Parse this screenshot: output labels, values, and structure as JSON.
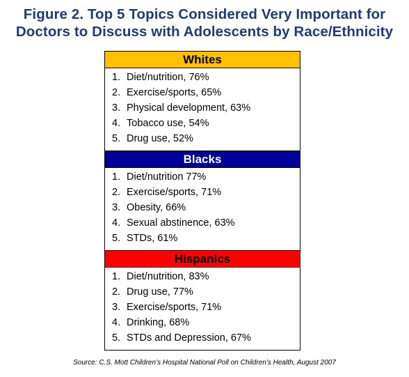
{
  "title": {
    "line1": "Figure 2. Top 5 Topics Considered Very Important for",
    "line2": "Doctors to Discuss with Adolescents by Race/Ethnicity"
  },
  "groups": [
    {
      "name": "Whites",
      "color": "#ffc000",
      "items": [
        {
          "num": "1.",
          "text": "Diet/nutrition, 76%"
        },
        {
          "num": "2.",
          "text": "Exercise/sports, 65%"
        },
        {
          "num": "3.",
          "text": "Physical development, 63%"
        },
        {
          "num": "4.",
          "text": "Tobacco use, 54%"
        },
        {
          "num": "5.",
          "text": "Drug use, 52%"
        }
      ]
    },
    {
      "name": "Blacks",
      "color": "#000099",
      "items": [
        {
          "num": "1.",
          "text": "Diet/nutrition 77%"
        },
        {
          "num": "2.",
          "text": "Exercise/sports, 71%"
        },
        {
          "num": "3.",
          "text": "Obesity, 66%"
        },
        {
          "num": "4.",
          "text": "Sexual abstinence, 63%"
        },
        {
          "num": "5.",
          "text": "STDs, 61%"
        }
      ]
    },
    {
      "name": "Hispanics",
      "color": "#ff0000",
      "items": [
        {
          "num": "1.",
          "text": "Diet/nutrition, 83%"
        },
        {
          "num": "2.",
          "text": "Drug use, 77%"
        },
        {
          "num": "3.",
          "text": "Exercise/sports, 71%"
        },
        {
          "num": "4.",
          "text": "Drinking, 68%"
        },
        {
          "num": "5.",
          "text": "STDs and Depression, 67%"
        }
      ]
    }
  ],
  "source": "Source: C.S. Mott Children’s Hospital National Poll on Children’s Health, August 2007"
}
